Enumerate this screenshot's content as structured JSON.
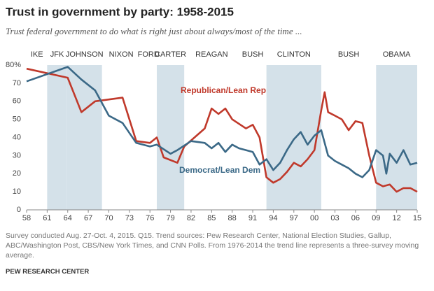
{
  "chart_data": {
    "type": "line",
    "title": "Trust in government by party: 1958-2015",
    "subtitle": "Trust federal government to do what is right just about always/most of the time ...",
    "presidents": [
      {
        "name": "IKE",
        "from": 1958,
        "to": 1961,
        "shaded": false
      },
      {
        "name": "JFK",
        "from": 1961,
        "to": 1963.9,
        "shaded": true
      },
      {
        "name": "JOHNSON",
        "from": 1963.9,
        "to": 1969,
        "shaded": true
      },
      {
        "name": "NIXON",
        "from": 1969,
        "to": 1974.6,
        "shaded": false
      },
      {
        "name": "FORD",
        "from": 1974.6,
        "to": 1977,
        "shaded": false
      },
      {
        "name": "CARTER",
        "from": 1977,
        "to": 1981,
        "shaded": true
      },
      {
        "name": "REAGAN",
        "from": 1981,
        "to": 1989,
        "shaded": false
      },
      {
        "name": "BUSH",
        "from": 1989,
        "to": 1993,
        "shaded": false
      },
      {
        "name": "CLINTON",
        "from": 1993,
        "to": 2001,
        "shaded": true
      },
      {
        "name": "BUSH",
        "from": 2001,
        "to": 2009,
        "shaded": false
      },
      {
        "name": "OBAMA",
        "from": 2009,
        "to": 2015,
        "shaded": true
      }
    ],
    "shade_color": "#d4e1e9",
    "series": [
      {
        "name": "Republican/Lean Rep",
        "color": "#c0392b",
        "x": [
          1958,
          1964,
          1966,
          1968,
          1972,
          1974,
          1976,
          1977,
          1978,
          1980,
          1981,
          1984,
          1985,
          1986,
          1987,
          1988,
          1990,
          1991,
          1992,
          1993,
          1994,
          1995,
          1996,
          1997,
          1998,
          1999,
          2000,
          2001,
          2001.5,
          2002,
          2003,
          2004,
          2005,
          2006,
          2007,
          2008,
          2009,
          2010,
          2011,
          2012,
          2013,
          2014,
          2015
        ],
        "values": [
          78,
          73,
          54,
          60,
          62,
          38,
          37,
          40,
          29,
          26,
          35,
          45,
          56,
          53,
          56,
          50,
          45,
          47,
          40,
          18,
          15,
          17,
          21,
          26,
          24,
          28,
          33,
          55,
          65,
          54,
          52,
          50,
          44,
          49,
          48,
          30,
          15,
          13,
          14,
          10,
          12,
          12,
          10
        ]
      },
      {
        "name": "Democrat/Lean Dem",
        "color": "#3b6987",
        "x": [
          1958,
          1964,
          1966,
          1968,
          1970,
          1972,
          1974,
          1976,
          1977,
          1979,
          1980,
          1982,
          1984,
          1985,
          1986,
          1987,
          1988,
          1989,
          1990,
          1991,
          1992,
          1993,
          1994,
          1995,
          1996,
          1997,
          1998,
          1999,
          2000,
          2001,
          2002,
          2003,
          2004,
          2005,
          2006,
          2007,
          2008,
          2009,
          2010,
          2010.5,
          2011,
          2012,
          2013,
          2014,
          2015
        ],
        "values": [
          71,
          79,
          72,
          66,
          52,
          48,
          37,
          35,
          36,
          31,
          33,
          38,
          37,
          34,
          37,
          32,
          36,
          34,
          33,
          32,
          25,
          28,
          22,
          26,
          33,
          39,
          43,
          36,
          41,
          44,
          30,
          27,
          25,
          23,
          20,
          18,
          22,
          33,
          30,
          20,
          31,
          26,
          33,
          25,
          26
        ]
      }
    ],
    "xlim": [
      1958,
      2015
    ],
    "xticks": [
      {
        "value": 1958,
        "label": "58"
      },
      {
        "value": 1961,
        "label": "61"
      },
      {
        "value": 1964,
        "label": "64"
      },
      {
        "value": 1967,
        "label": "67"
      },
      {
        "value": 1970,
        "label": "70"
      },
      {
        "value": 1973,
        "label": "73"
      },
      {
        "value": 1976,
        "label": "76"
      },
      {
        "value": 1979,
        "label": "79"
      },
      {
        "value": 1982,
        "label": "82"
      },
      {
        "value": 1985,
        "label": "85"
      },
      {
        "value": 1988,
        "label": "88"
      },
      {
        "value": 1991,
        "label": "91"
      },
      {
        "value": 1994,
        "label": "94"
      },
      {
        "value": 1997,
        "label": "97"
      },
      {
        "value": 2000,
        "label": "00"
      },
      {
        "value": 2003,
        "label": "03"
      },
      {
        "value": 2006,
        "label": "06"
      },
      {
        "value": 2009,
        "label": "09"
      },
      {
        "value": 2012,
        "label": "12"
      },
      {
        "value": 2015,
        "label": "15"
      }
    ],
    "ylim": [
      0,
      80
    ],
    "yticks": [
      0,
      10,
      20,
      30,
      40,
      50,
      60,
      70,
      {
        "value": 80,
        "label": "80%"
      }
    ],
    "note": "Survey conducted Aug. 27-Oct. 4, 2015. Q15. Trend sources: Pew Research Center, National Election Studies, Gallup, ABC/Washington Post, CBS/New York Times, and CNN Polls. From 1976-2014 the trend line represents a three-survey moving average.",
    "source": "PEW RESEARCH CENTER"
  }
}
